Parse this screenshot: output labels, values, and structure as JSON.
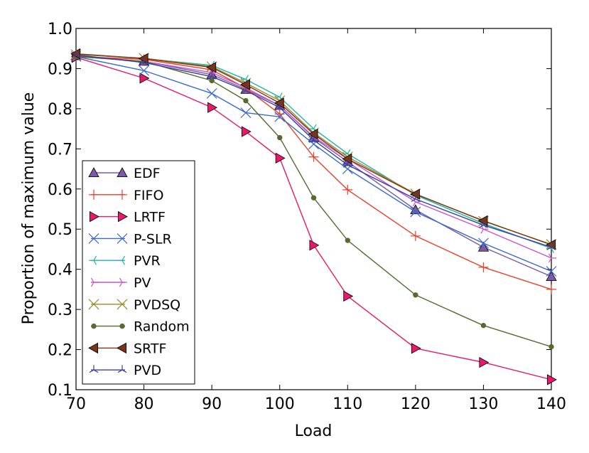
{
  "chart_data": {
    "type": "line",
    "title": "",
    "xlabel": "Load",
    "ylabel": "Proportion of maximum value",
    "xlim": [
      70,
      140
    ],
    "ylim": [
      0.1,
      1.0
    ],
    "x_ticks": [
      "70",
      "80",
      "90",
      "100",
      "110",
      "120",
      "130",
      "140"
    ],
    "y_ticks": [
      "0.1",
      "0.2",
      "0.3",
      "0.4",
      "0.5",
      "0.6",
      "0.7",
      "0.8",
      "0.9",
      "1.0"
    ],
    "x": [
      70,
      80,
      90,
      95,
      100,
      105,
      110,
      120,
      130,
      140
    ],
    "legend_position": "lower-left",
    "series": [
      {
        "name": "EDF",
        "color": "#7b5aa6",
        "marker": "triangle-up",
        "values": [
          0.932,
          0.918,
          0.885,
          0.848,
          0.808,
          0.728,
          0.668,
          0.548,
          0.455,
          0.382
        ]
      },
      {
        "name": "FIFO",
        "color": "#e8402a",
        "marker": "plus",
        "values": [
          0.93,
          0.923,
          0.897,
          0.851,
          0.787,
          0.68,
          0.598,
          0.483,
          0.405,
          0.35
        ]
      },
      {
        "name": "LRTF",
        "color": "#e6196b",
        "marker": "triangle-right",
        "values": [
          0.928,
          0.876,
          0.803,
          0.743,
          0.677,
          0.46,
          0.333,
          0.203,
          0.168,
          0.125
        ]
      },
      {
        "name": "P-SLR",
        "color": "#3a6bc8",
        "marker": "x",
        "values": [
          0.93,
          0.895,
          0.838,
          0.79,
          0.78,
          0.712,
          0.65,
          0.543,
          0.465,
          0.395
        ]
      },
      {
        "name": "PVR",
        "color": "#1fb5a8",
        "marker": "tri-left",
        "values": [
          0.936,
          0.925,
          0.908,
          0.873,
          0.829,
          0.75,
          0.688,
          0.585,
          0.514,
          0.452
        ]
      },
      {
        "name": "PV",
        "color": "#c855c8",
        "marker": "tri-right",
        "values": [
          0.93,
          0.918,
          0.89,
          0.852,
          0.808,
          0.73,
          0.675,
          0.568,
          0.5,
          0.428
        ]
      },
      {
        "name": "PVDSQ",
        "color": "#a08a2a",
        "marker": "x",
        "values": [
          0.935,
          0.926,
          0.905,
          0.864,
          0.82,
          0.74,
          0.68,
          0.588,
          0.52,
          0.462
        ]
      },
      {
        "name": "Random",
        "color": "#556b2f",
        "marker": "dot",
        "values": [
          0.93,
          0.918,
          0.87,
          0.82,
          0.728,
          0.578,
          0.472,
          0.336,
          0.26,
          0.207
        ]
      },
      {
        "name": "SRTF",
        "color": "#7a3518",
        "marker": "triangle-left",
        "values": [
          0.937,
          0.925,
          0.903,
          0.86,
          0.814,
          0.737,
          0.675,
          0.587,
          0.521,
          0.461
        ]
      },
      {
        "name": "PVD",
        "color": "#3b3fa3",
        "marker": "tri-up",
        "values": [
          0.934,
          0.915,
          0.88,
          0.845,
          0.803,
          0.722,
          0.66,
          0.575,
          0.51,
          0.455
        ]
      }
    ]
  }
}
